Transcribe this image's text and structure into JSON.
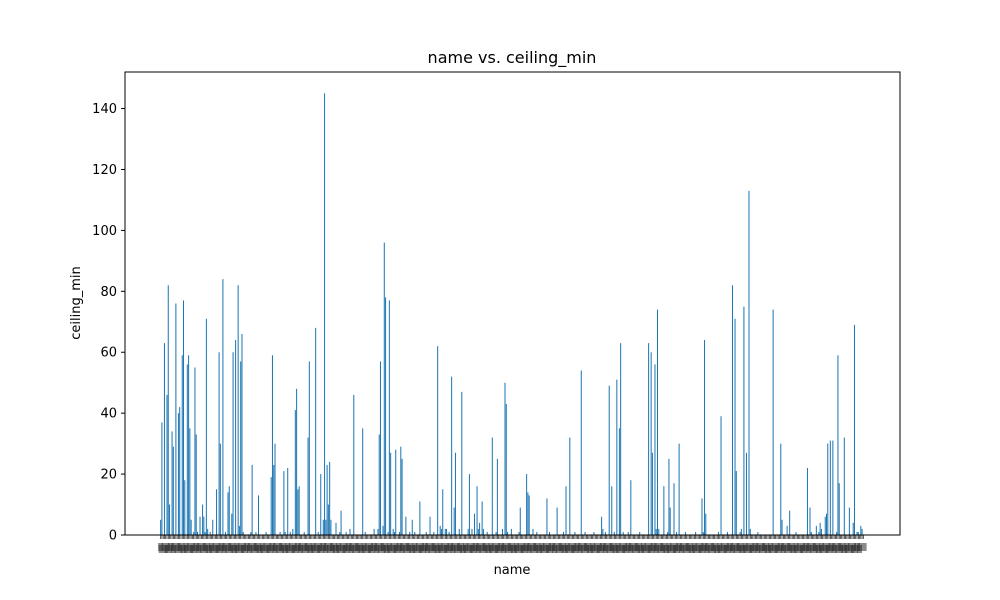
{
  "chart_data": {
    "type": "bar",
    "title": "name vs. ceiling_min",
    "xlabel": "name",
    "ylabel": "ceiling_min",
    "ylim": [
      0,
      152
    ],
    "yticks": [
      0,
      20,
      40,
      60,
      80,
      100,
      120,
      140
    ],
    "grid": false,
    "bar_color": "#1f77b4",
    "x_tick_labels_note": "overlapping illegible category labels",
    "values": [
      5,
      37,
      0,
      63,
      0,
      46,
      82,
      10,
      0,
      34,
      29,
      0,
      76,
      0,
      40,
      42,
      0,
      59,
      77,
      18,
      0,
      56,
      59,
      35,
      5,
      0,
      1,
      55,
      33,
      1,
      0,
      6,
      0,
      10,
      6,
      1,
      71,
      2,
      0,
      1,
      0,
      5,
      0,
      0,
      15,
      0,
      60,
      30,
      0,
      84,
      0,
      1,
      0,
      14,
      16,
      0,
      7,
      60,
      0,
      64,
      0,
      82,
      3,
      57,
      66,
      1,
      0,
      0,
      0,
      0,
      0,
      1,
      23,
      0,
      0,
      1,
      0,
      13,
      0,
      0,
      0,
      0,
      0,
      1,
      0,
      0,
      0,
      19,
      59,
      23,
      30,
      0,
      0,
      0,
      1,
      0,
      0,
      21,
      1,
      0,
      22,
      0,
      1,
      0,
      2,
      0,
      41,
      48,
      15,
      16,
      0,
      0,
      0,
      1,
      0,
      0,
      32,
      57,
      0,
      0,
      0,
      0,
      68,
      0,
      1,
      0,
      20,
      0,
      5,
      145,
      5,
      23,
      10,
      24,
      5,
      0,
      0,
      0,
      4,
      0,
      0,
      1,
      8,
      0,
      0,
      0,
      1,
      0,
      0,
      2,
      0,
      0,
      46,
      0,
      0,
      0,
      0,
      0,
      0,
      35,
      0,
      1,
      0,
      0,
      0,
      0,
      0,
      0,
      2,
      0,
      0,
      2,
      33,
      57,
      0,
      3,
      96,
      78,
      0,
      1,
      77,
      27,
      0,
      2,
      1,
      28,
      0,
      0,
      1,
      29,
      25,
      0,
      0,
      6,
      0,
      0,
      1,
      0,
      5,
      0,
      1,
      0,
      0,
      0,
      11,
      0,
      0,
      0,
      0,
      1,
      0,
      0,
      6,
      0,
      0,
      1,
      0,
      0,
      62,
      0,
      3,
      2,
      15,
      0,
      2,
      2,
      0,
      1,
      0,
      52,
      0,
      9,
      27,
      0,
      0,
      2,
      0,
      47,
      0,
      0,
      0,
      0,
      2,
      20,
      0,
      2,
      0,
      7,
      0,
      16,
      2,
      4,
      0,
      11,
      2,
      0,
      0,
      1,
      0,
      0,
      0,
      32,
      0,
      0,
      1,
      25,
      0,
      0,
      0,
      2,
      0,
      50,
      43,
      1,
      0,
      0,
      2,
      0,
      0,
      0,
      0,
      0,
      1,
      9,
      0,
      0,
      0,
      0,
      20,
      14,
      13,
      0,
      0,
      2,
      0,
      0,
      1,
      0,
      0,
      0,
      0,
      0,
      0,
      0,
      12,
      0,
      1,
      0,
      0,
      0,
      0,
      0,
      9,
      0,
      0,
      0,
      0,
      1,
      0,
      16,
      0,
      0,
      32,
      0,
      0,
      0,
      1,
      0,
      0,
      0,
      0,
      54,
      0,
      0,
      1,
      0,
      0,
      0,
      0,
      0,
      0,
      1,
      0,
      0,
      0,
      0,
      0,
      6,
      2,
      0,
      1,
      0,
      0,
      49,
      0,
      16,
      0,
      1,
      0,
      51,
      0,
      35,
      63,
      0,
      1,
      0,
      0,
      0,
      1,
      0,
      18,
      0,
      0,
      0,
      0,
      0,
      0,
      1,
      0,
      0,
      0,
      0,
      0,
      0,
      63,
      0,
      60,
      27,
      0,
      56,
      2,
      74,
      2,
      0,
      0,
      0,
      16,
      0,
      0,
      1,
      25,
      9,
      0,
      0,
      17,
      0,
      1,
      0,
      30,
      0,
      0,
      0,
      0,
      1,
      0,
      0,
      0,
      0,
      0,
      0,
      0,
      1,
      0,
      0,
      0,
      0,
      12,
      1,
      64,
      7,
      0,
      0,
      0,
      0,
      0,
      0,
      0,
      0,
      0,
      1,
      0,
      39,
      0,
      0,
      0,
      0,
      1,
      0,
      0,
      0,
      82,
      0,
      71,
      21,
      0,
      0,
      1,
      2,
      0,
      75,
      0,
      27,
      0,
      113,
      2,
      0,
      0,
      0,
      0,
      0,
      1,
      0,
      0,
      0,
      0,
      0,
      0,
      0,
      0,
      0,
      0,
      0,
      74,
      0,
      0,
      0,
      0,
      0,
      30,
      5,
      0,
      0,
      0,
      3,
      0,
      8,
      0,
      0,
      0,
      0,
      1,
      0,
      0,
      0,
      0,
      0,
      0,
      0,
      0,
      22,
      0,
      9,
      1,
      0,
      0,
      0,
      3,
      0,
      1,
      4,
      2,
      0,
      0,
      6,
      7,
      30,
      0,
      31,
      0,
      31,
      0,
      0,
      1,
      59,
      17,
      0,
      0,
      0,
      32,
      0,
      0,
      0,
      9,
      0,
      0,
      4,
      69,
      0,
      1,
      1,
      0,
      3,
      2,
      0
    ]
  }
}
